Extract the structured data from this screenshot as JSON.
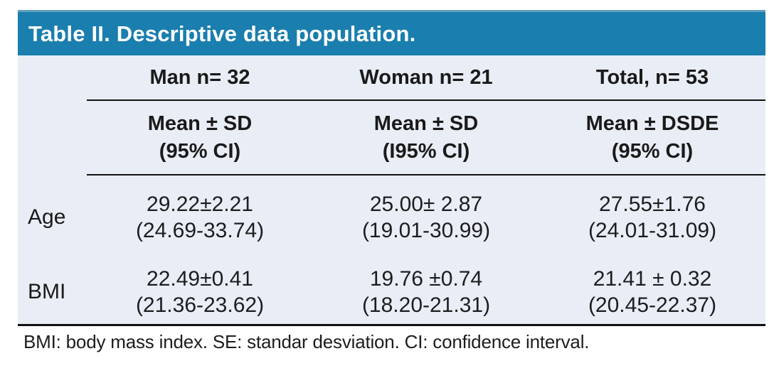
{
  "title": "Table II. Descriptive data population.",
  "columns": [
    "Man n= 32",
    "Woman n= 21",
    "Total, n= 53"
  ],
  "subheaders": [
    {
      "line1": "Mean ± SD",
      "line2": "(95% CI)"
    },
    {
      "line1": "Mean ± SD",
      "line2": "(I95% CI)"
    },
    {
      "line1": "Mean ± DSDE",
      "line2": "(95% CI)"
    }
  ],
  "rows": [
    {
      "label": "Age",
      "cells": [
        {
          "value": "29.22±2.21",
          "ci": "(24.69-33.74)"
        },
        {
          "value": "25.00± 2.87",
          "ci": "(19.01-30.99)"
        },
        {
          "value": "27.55±1.76",
          "ci": "(24.01-31.09)"
        }
      ]
    },
    {
      "label": "BMI",
      "cells": [
        {
          "value": "22.49±0.41",
          "ci": "(21.36-23.62)"
        },
        {
          "value": "19.76 ±0.74",
          "ci": "(18.20-21.31)"
        },
        {
          "value": "21.41 ± 0.32",
          "ci": "(20.45-22.37)"
        }
      ]
    }
  ],
  "footnote": "BMI: body mass index. SE: standar desviation. CI: confidence interval.",
  "colors": {
    "header_bg": "#1a7eae",
    "header_top_edge": "#62a0bf",
    "body_bg": "#e9edf5",
    "line": "#111111",
    "title_text": "#ffffff",
    "text": "#1d1d1f"
  }
}
